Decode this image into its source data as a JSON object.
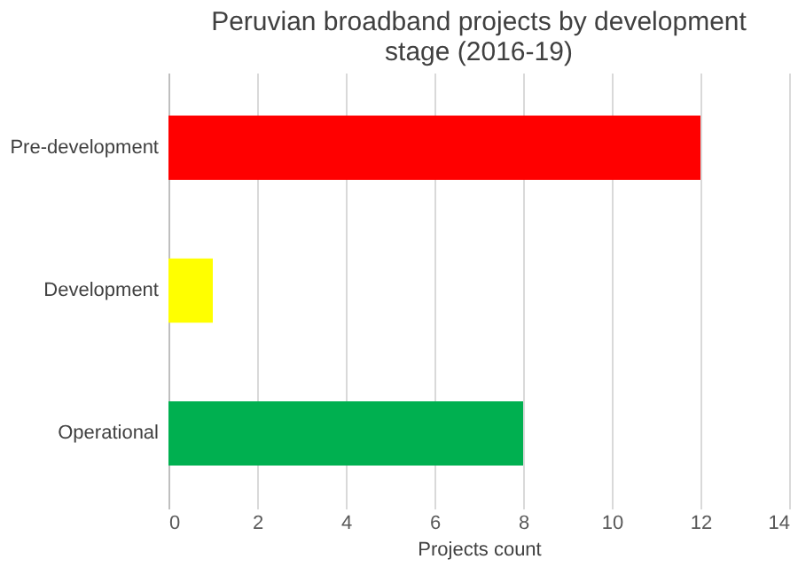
{
  "chart_data": {
    "type": "bar",
    "orientation": "horizontal",
    "title": [
      "Peruvian broadband projects by development",
      "stage (2016-19)"
    ],
    "xlabel": "Projects count",
    "categories": [
      "Pre-development",
      "Development",
      "Operational"
    ],
    "values": [
      12,
      1,
      8
    ],
    "colors": [
      "#ff0000",
      "#ffff00",
      "#00b050"
    ],
    "xlim": [
      0,
      14
    ],
    "xticks": [
      0,
      2,
      4,
      6,
      8,
      10,
      12,
      14
    ],
    "grid": "x"
  }
}
